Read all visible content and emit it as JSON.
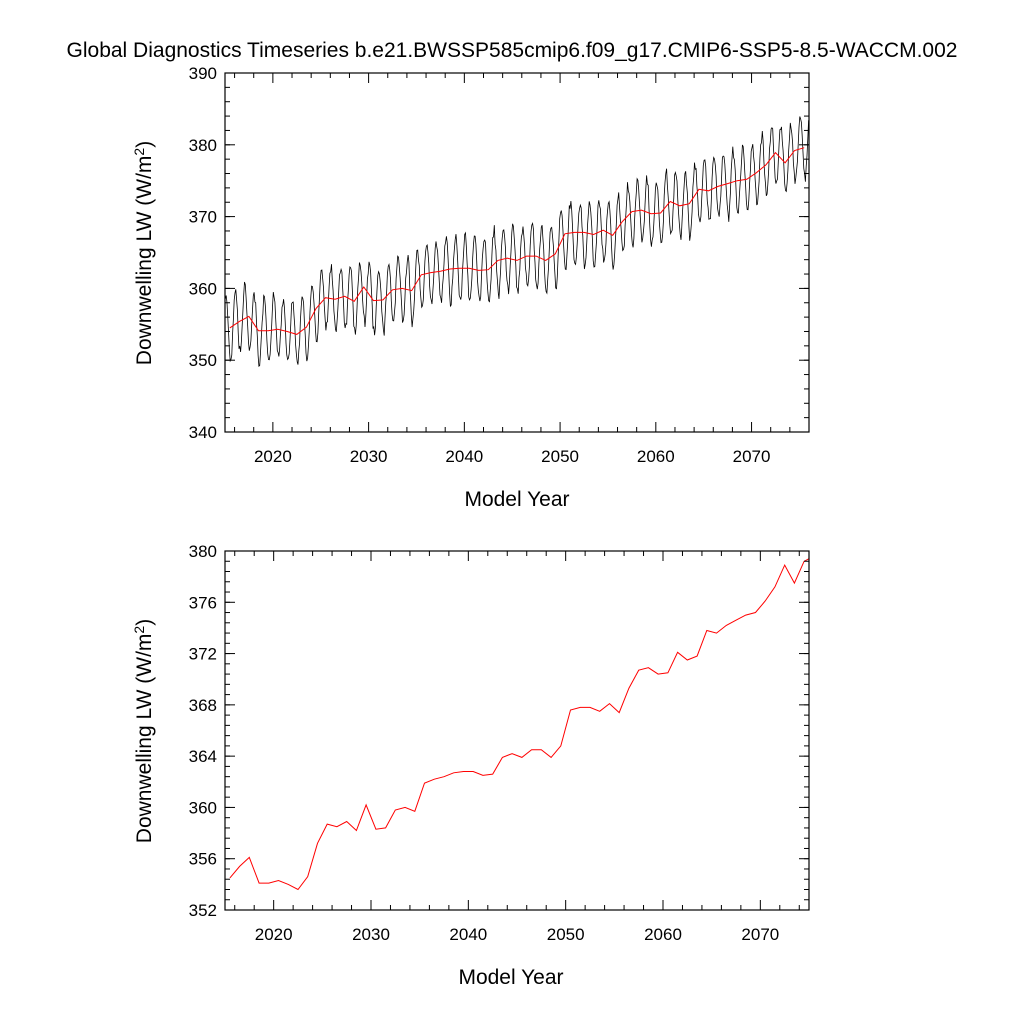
{
  "title": "Global Diagnostics Timeseries b.e21.BWSSP585cmip6.f09_g17.CMIP6-SSP5-8.5-WACCM.002",
  "colors": {
    "monthly": "#000000",
    "annual": "#ff0000"
  },
  "chart_data": [
    {
      "type": "line",
      "xlabel": "Model Year",
      "ylabel": "Downwelling LW (W/m",
      "ylabel_sup": "2",
      "ylabel_close": ")",
      "xlim": [
        2015,
        2076
      ],
      "ylim": [
        340,
        390
      ],
      "xticks": [
        2020,
        2030,
        2040,
        2050,
        2060,
        2070
      ],
      "yticks": [
        340,
        350,
        360,
        370,
        380,
        390
      ],
      "series": [
        {
          "name": "monthly",
          "color": "#000000",
          "description": "Monthly values with seasonal cycle (amplitude ~4-5 W/m2) superimposed on the annual mean trend",
          "seasonal_amplitude": 4.5,
          "months_per_year": 12
        },
        {
          "name": "annual",
          "color": "#ff0000",
          "source": "annual_mean"
        }
      ]
    },
    {
      "type": "line",
      "xlabel": "Model Year",
      "ylabel": "Downwelling LW (W/m",
      "ylabel_sup": "2",
      "ylabel_close": ")",
      "xlim": [
        2015,
        2075
      ],
      "ylim": [
        352,
        380
      ],
      "xticks": [
        2020,
        2030,
        2040,
        2050,
        2060,
        2070
      ],
      "yticks": [
        352,
        356,
        360,
        364,
        368,
        372,
        376,
        380
      ],
      "series": [
        {
          "name": "annual",
          "color": "#ff0000",
          "source": "annual_mean"
        }
      ]
    }
  ],
  "annual_mean": {
    "years": [
      2015,
      2016,
      2017,
      2018,
      2019,
      2020,
      2021,
      2022,
      2023,
      2024,
      2025,
      2026,
      2027,
      2028,
      2029,
      2030,
      2031,
      2032,
      2033,
      2034,
      2035,
      2036,
      2037,
      2038,
      2039,
      2040,
      2041,
      2042,
      2043,
      2044,
      2045,
      2046,
      2047,
      2048,
      2049,
      2050,
      2051,
      2052,
      2053,
      2054,
      2055,
      2056,
      2057,
      2058,
      2059,
      2060,
      2061,
      2062,
      2063,
      2064,
      2065,
      2066,
      2067,
      2068,
      2069,
      2070,
      2071,
      2072,
      2073,
      2074,
      2075
    ],
    "values": [
      354.5,
      355.4,
      356.1,
      354.1,
      354.1,
      354.3,
      354.0,
      353.6,
      354.6,
      357.2,
      358.7,
      358.5,
      358.9,
      358.2,
      360.2,
      358.3,
      358.4,
      359.8,
      360.0,
      359.7,
      361.9,
      362.2,
      362.4,
      362.7,
      362.8,
      362.8,
      362.5,
      362.6,
      363.9,
      364.2,
      363.9,
      364.5,
      364.5,
      363.9,
      364.8,
      367.6,
      367.8,
      367.8,
      367.5,
      368.1,
      367.4,
      369.3,
      370.7,
      370.9,
      370.4,
      370.5,
      372.1,
      371.5,
      371.8,
      373.8,
      373.6,
      374.2,
      374.6,
      375.0,
      375.2,
      376.1,
      377.2,
      378.9,
      377.5,
      379.2,
      379.6
    ]
  }
}
